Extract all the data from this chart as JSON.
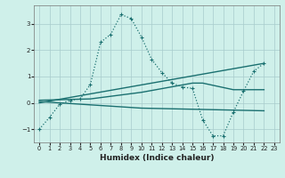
{
  "xlabel": "Humidex (Indice chaleur)",
  "bg_color": "#cff0ea",
  "grid_color": "#a8cccc",
  "line_color": "#1a7070",
  "xlim": [
    -0.5,
    23.5
  ],
  "ylim": [
    -1.5,
    3.7
  ],
  "yticks": [
    -1,
    0,
    1,
    2,
    3
  ],
  "xticks": [
    0,
    1,
    2,
    3,
    4,
    5,
    6,
    7,
    8,
    9,
    10,
    11,
    12,
    13,
    14,
    15,
    16,
    17,
    18,
    19,
    20,
    21,
    22,
    23
  ],
  "line1_x": [
    0,
    1,
    2,
    3,
    4,
    5,
    6,
    7,
    8,
    9,
    10,
    11,
    12,
    13,
    14,
    15,
    16,
    17,
    18,
    19,
    20,
    21,
    22
  ],
  "line1_y": [
    -1.0,
    -0.55,
    -0.05,
    0.1,
    0.15,
    0.7,
    2.3,
    2.6,
    3.35,
    3.2,
    2.5,
    1.65,
    1.15,
    0.75,
    0.6,
    0.55,
    -0.65,
    -1.25,
    -1.25,
    -0.35,
    0.45,
    1.2,
    1.5
  ],
  "line2_x": [
    0,
    22
  ],
  "line2_y": [
    0.0,
    1.5
  ],
  "line3_x": [
    0,
    10,
    16,
    22
  ],
  "line3_y": [
    0.05,
    -0.2,
    -0.25,
    -0.3
  ],
  "line4_x": [
    0,
    5,
    10,
    15,
    16,
    19,
    22
  ],
  "line4_y": [
    0.1,
    0.15,
    0.4,
    0.75,
    0.75,
    0.5,
    0.5
  ]
}
